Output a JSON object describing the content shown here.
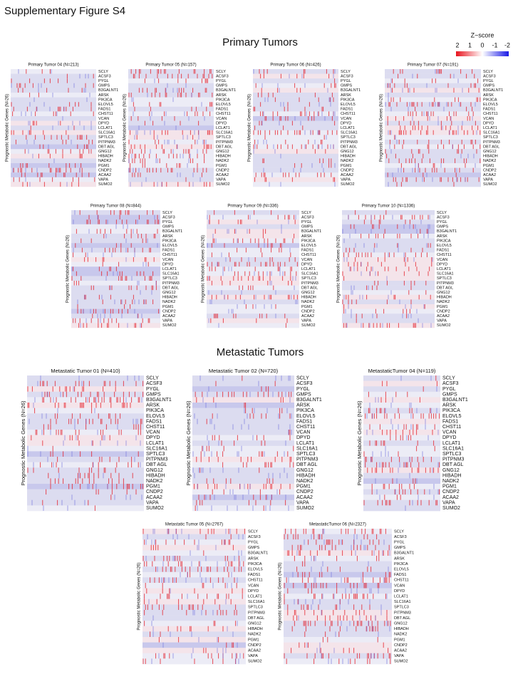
{
  "title": "Supplementary Figure S4",
  "legend": {
    "title": "Z−score",
    "ticks": [
      "2",
      "1",
      "0",
      "-1",
      "-2"
    ]
  },
  "y_label": "Prognostic Metabolic Genes (N=26)",
  "genes": [
    "SCLY",
    "ACSF3",
    "PYGL",
    "GMPS",
    "B3GALNT1",
    "ARSK",
    "PIK3CA",
    "ELOVL5",
    "FADS1",
    "CHST11",
    "VCAN",
    "DPYD",
    "LCLAT1",
    "SLC16A1",
    "SPTLC3",
    "PITPNM3",
    "DBT AGL",
    "GNG12",
    "HIBADH",
    "NADK2",
    "PGM1",
    "CNDP2",
    "ACAA2",
    "VAPA",
    "SUMO2"
  ],
  "sections": [
    {
      "title": "Primary Tumors",
      "panels": [
        {
          "title": "Primary Tumor 04 (N=213)"
        },
        {
          "title": "Primary Tumor 05 (N=157)"
        },
        {
          "title": "Primary Tumor 06 (N=426)"
        },
        {
          "title": "Primary Tumor 07 (N=191)"
        },
        {
          "title": "Primary Tumor 08 (N=844)"
        },
        {
          "title": "Primary Tumor 09 (N=336)"
        },
        {
          "title": "Primary Tumor 10 (N=1336)"
        }
      ]
    },
    {
      "title": "Metastatic Tumors",
      "panels": [
        {
          "title": "Metastatic Tumor 01 (N=410)"
        },
        {
          "title": "Metastatic Tumor 02 (N=720)"
        },
        {
          "title": "MetastaticTumor 04 (N=119)"
        },
        {
          "title": "Metastatic Tumor 05 (N=2767)"
        },
        {
          "title": "MetastaticTumor 06 (N=2327)"
        }
      ]
    }
  ]
}
